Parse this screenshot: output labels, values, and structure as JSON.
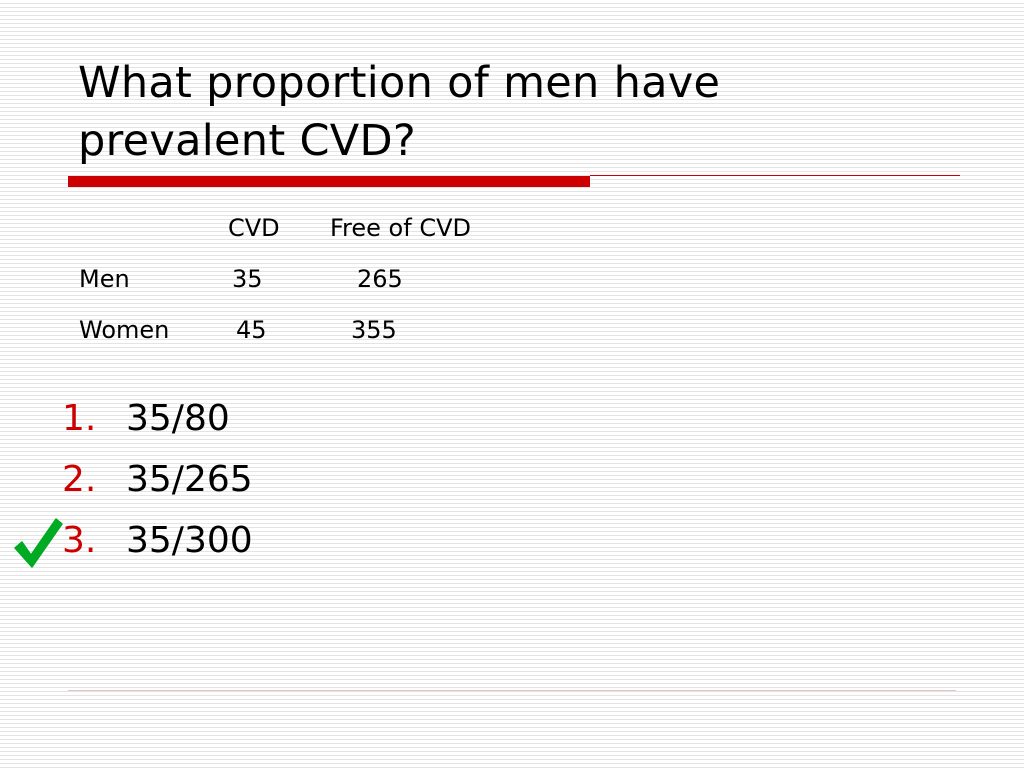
{
  "title": {
    "line1": "What proportion of men have",
    "line2": "prevalent CVD?"
  },
  "table": {
    "headers": [
      "CVD",
      "Free of CVD"
    ],
    "rows": [
      {
        "label": "Men",
        "cvd": "35",
        "free": "265"
      },
      {
        "label": "Women",
        "cvd": "45",
        "free": "355"
      }
    ]
  },
  "answers": [
    {
      "number": "1.",
      "text": "35/80"
    },
    {
      "number": "2.",
      "text": "35/265"
    },
    {
      "number": "3.",
      "text": "35/300",
      "marked_correct": true
    }
  ],
  "icons": {
    "correct_mark": "checkmark-icon"
  },
  "colors": {
    "accent_red": "#cc0000",
    "check_green": "#00aa22"
  }
}
